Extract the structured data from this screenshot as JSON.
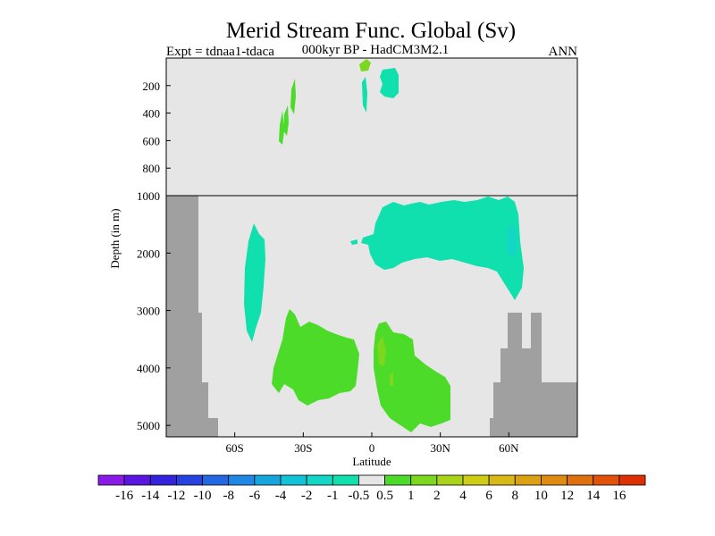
{
  "chart_data": {
    "type": "heatmap",
    "title": "Merid Stream Func. Global (Sv)",
    "subtitle_left": "Expt = tdnaa1-tdaca",
    "subtitle_center": "000kyr BP - HadCM3M2.1",
    "subtitle_right": "ANN",
    "xlabel": "Latitude",
    "ylabel": "Depth (in m)",
    "xlim": [
      -90,
      90
    ],
    "x_ticks": [
      {
        "value": -60,
        "label": "60S"
      },
      {
        "value": -30,
        "label": "30S"
      },
      {
        "value": 0,
        "label": "0"
      },
      {
        "value": 30,
        "label": "30N"
      },
      {
        "value": 60,
        "label": "60N"
      }
    ],
    "upper_panel": {
      "depth_range": [
        0,
        1000
      ],
      "y_ticks": [
        {
          "value": 200,
          "label": "200"
        },
        {
          "value": 400,
          "label": "400"
        },
        {
          "value": 600,
          "label": "600"
        },
        {
          "value": 800,
          "label": "800"
        },
        {
          "value": 1000,
          "label": "1000"
        }
      ]
    },
    "lower_panel": {
      "depth_range": [
        1000,
        5200
      ],
      "y_ticks": [
        {
          "value": 2000,
          "label": "2000"
        },
        {
          "value": 3000,
          "label": "3000"
        },
        {
          "value": 4000,
          "label": "4000"
        },
        {
          "value": 5000,
          "label": "5000"
        }
      ]
    },
    "colorbar": {
      "labels": [
        "-16",
        "-14",
        "-12",
        "-10",
        "-8",
        "-6",
        "-4",
        "-2",
        "-1",
        "-0.5",
        "0.5",
        "1",
        "2",
        "4",
        "6",
        "8",
        "10",
        "12",
        "14",
        "16"
      ],
      "colors": [
        "#8a1ae6",
        "#5a16e0",
        "#3323dd",
        "#2742e0",
        "#2467e2",
        "#1e88e4",
        "#16a6dd",
        "#12c2d7",
        "#14d6c4",
        "#0fe0ad",
        "#e6e6e6",
        "#4ddb2a",
        "#7bd81e",
        "#a9d41a",
        "#cfcc16",
        "#d8b915",
        "#dca112",
        "#df8a10",
        "#e06f0d",
        "#e1530a",
        "#df2f06"
      ]
    },
    "colors": {
      "background": "#e6e6e6",
      "land": "#a0a0a0"
    }
  }
}
